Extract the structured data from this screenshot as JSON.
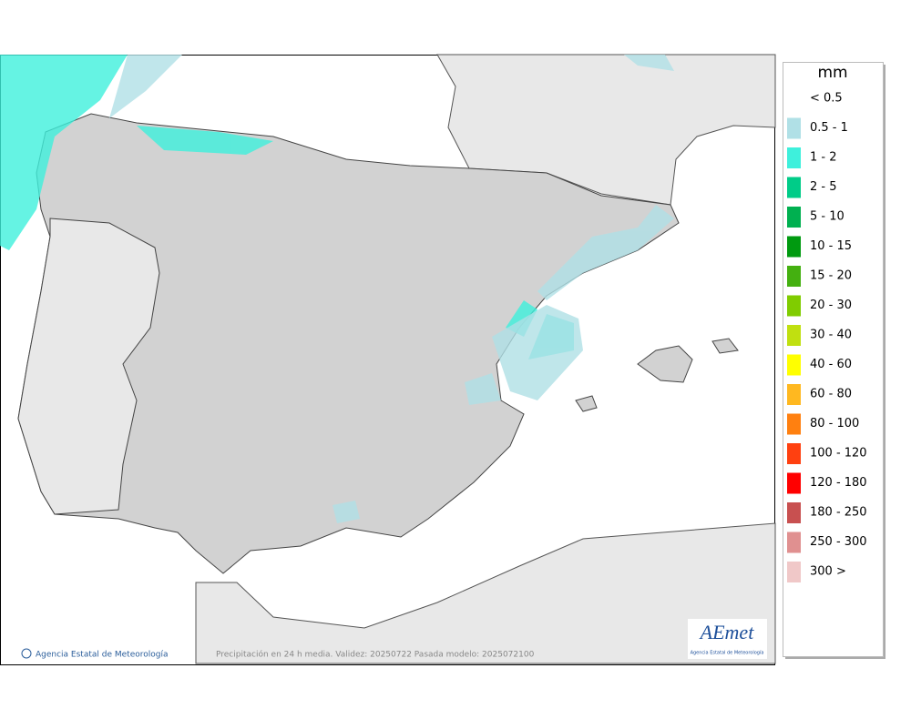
{
  "map": {
    "footer_left": "Agencia Estatal de Meteorología",
    "footer_center": "Precipitación en 24 h media. Validez: 20250722 Pasada modelo: 2025072100",
    "logo": {
      "name": "AEmet",
      "subtitle": "Agencia Estatal de Meteorología"
    }
  },
  "legend": {
    "title": "mm",
    "items": [
      {
        "label": "< 0.5"
      },
      {
        "label": "0.5 - 1",
        "color": "#b0e0e6"
      },
      {
        "label": "1 - 2",
        "color": "#3ef0dc"
      },
      {
        "label": "2 - 5",
        "color": "#00cc88"
      },
      {
        "label": "5 - 10",
        "color": "#00b050"
      },
      {
        "label": "10 - 15",
        "color": "#009a10"
      },
      {
        "label": "15 - 20",
        "color": "#44b010"
      },
      {
        "label": "20 - 30",
        "color": "#80cc00"
      },
      {
        "label": "30 - 40",
        "color": "#c0e010"
      },
      {
        "label": "40 - 60",
        "color": "#ffff00"
      },
      {
        "label": "60 - 80",
        "color": "#ffb820"
      },
      {
        "label": "80 - 100",
        "color": "#ff8010"
      },
      {
        "label": "100 - 120",
        "color": "#ff4010"
      },
      {
        "label": "120 - 180",
        "color": "#ff0000"
      },
      {
        "label": "180 - 250",
        "color": "#c85050"
      },
      {
        "label": "250 - 300",
        "color": "#e09090"
      },
      {
        "label": "300 >",
        "color": "#f0c8c8"
      }
    ]
  }
}
